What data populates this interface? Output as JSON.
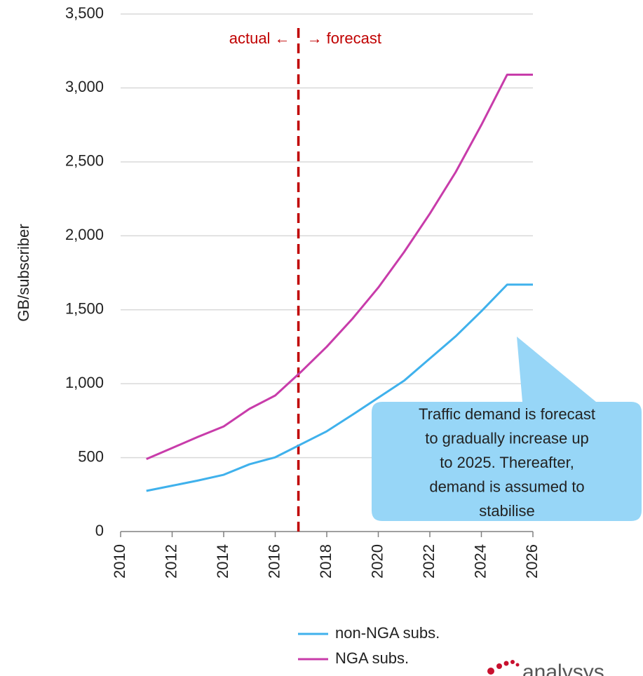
{
  "chart_data": {
    "type": "line",
    "y_label": "GB/subscriber",
    "x": [
      2011,
      2012,
      2013,
      2014,
      2015,
      2016,
      2017,
      2018,
      2019,
      2020,
      2021,
      2022,
      2023,
      2024,
      2025,
      2026
    ],
    "series": [
      {
        "name": "non-NGA subs.",
        "color": "#3fb1ec",
        "values": [
          275,
          310,
          345,
          384,
          455,
          502,
          590,
          678,
          790,
          905,
          1020,
          1170,
          1320,
          1490,
          1670,
          1670
        ]
      },
      {
        "name": "NGA subs.",
        "color": "#c83caa",
        "values": [
          490,
          565,
          640,
          711,
          830,
          920,
          1080,
          1250,
          1440,
          1650,
          1890,
          2150,
          2430,
          2750,
          3090,
          3090
        ]
      }
    ],
    "xlim": [
      2010,
      2026
    ],
    "xticks": [
      2010,
      2012,
      2014,
      2016,
      2018,
      2020,
      2022,
      2024,
      2026
    ],
    "ylim": [
      0,
      3500
    ],
    "yticks": [
      0,
      500,
      {
        "value": 1000,
        "label": "1,000"
      },
      {
        "value": 1500,
        "label": "1,500"
      },
      {
        "value": 2000,
        "label": "2,000"
      },
      {
        "value": 2500,
        "label": "2,500"
      },
      {
        "value": 3000,
        "label": "3,000"
      },
      {
        "value": 3500,
        "label": "3,500"
      }
    ],
    "grid": true,
    "divider_x": 2016.9,
    "divider_color": "#c00000",
    "divider_labels": [
      "actual ←",
      "→ forecast"
    ],
    "callout": [
      "Traffic demand is forecast",
      "to gradually increase up",
      "to 2025. Thereafter,",
      "demand is assumed to",
      "stabilise"
    ],
    "logo": "analysys"
  }
}
